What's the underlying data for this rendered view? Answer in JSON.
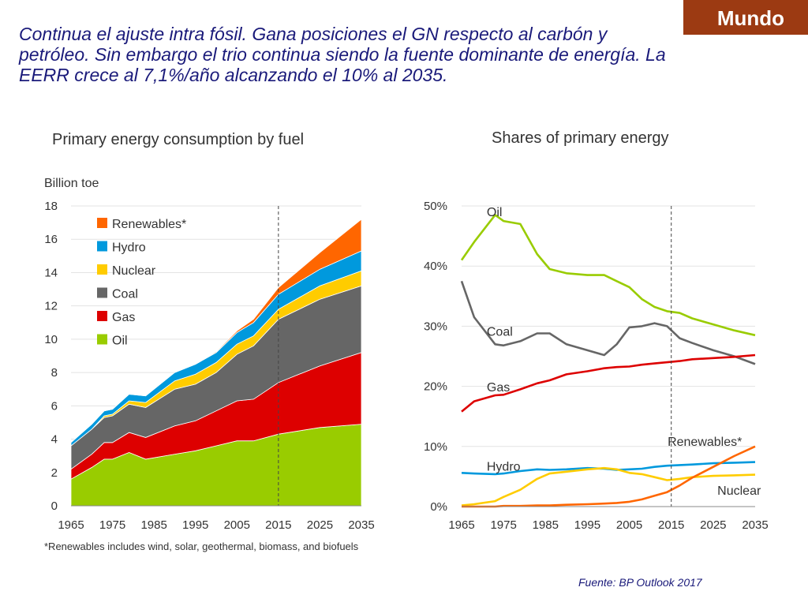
{
  "badge": "Mundo",
  "headline": "Continua el ajuste intra fósil. Gana posiciones el GN respecto al carbón y petróleo. Sin embargo el trio continua siendo la fuente dominante de energía. La EERR crece al 7,1%/año alcanzando el 10% al 2035.",
  "source": "Fuente: BP Outlook 2017",
  "colors": {
    "oil": "#99cc00",
    "gas": "#dd0000",
    "coal": "#666666",
    "nuclear": "#ffcc00",
    "hydro": "#0099dd",
    "renewables": "#ff6600"
  },
  "chart_data": [
    {
      "type": "area",
      "title": "Primary energy consumption by fuel",
      "ylabel": "Billion toe",
      "ylim": [
        0,
        18
      ],
      "yticks": [
        "0",
        "2",
        "4",
        "6",
        "8",
        "10",
        "12",
        "14",
        "16",
        "18"
      ],
      "xlim": [
        1965,
        2035
      ],
      "xticks": [
        "1965",
        "1975",
        "1985",
        "1995",
        "2005",
        "2015",
        "2025",
        "2035"
      ],
      "forecast_divider_year": 2015,
      "stacked": true,
      "legend_placement": "top-left",
      "footnote": "*Renewables includes wind, solar, geothermal, biomass, and biofuels",
      "x": [
        1965,
        1970,
        1973,
        1975,
        1979,
        1983,
        1990,
        1995,
        2000,
        2005,
        2009,
        2015,
        2025,
        2035
      ],
      "series": [
        {
          "name": "Oil",
          "key": "oil",
          "values": [
            1.6,
            2.3,
            2.8,
            2.8,
            3.2,
            2.8,
            3.1,
            3.3,
            3.6,
            3.9,
            3.9,
            4.3,
            4.7,
            4.9
          ]
        },
        {
          "name": "Gas",
          "key": "gas",
          "values": [
            0.6,
            0.8,
            1.0,
            1.0,
            1.2,
            1.3,
            1.7,
            1.8,
            2.1,
            2.4,
            2.5,
            3.1,
            3.7,
            4.3
          ]
        },
        {
          "name": "Coal",
          "key": "coal",
          "values": [
            1.4,
            1.5,
            1.5,
            1.6,
            1.7,
            1.8,
            2.2,
            2.2,
            2.3,
            2.8,
            3.2,
            3.8,
            4.0,
            4.0
          ]
        },
        {
          "name": "Nuclear",
          "key": "nuclear",
          "values": [
            0.0,
            0.0,
            0.1,
            0.1,
            0.2,
            0.3,
            0.5,
            0.6,
            0.6,
            0.6,
            0.6,
            0.6,
            0.8,
            0.9
          ]
        },
        {
          "name": "Hydro",
          "key": "hydro",
          "values": [
            0.2,
            0.3,
            0.3,
            0.3,
            0.4,
            0.4,
            0.5,
            0.6,
            0.6,
            0.7,
            0.8,
            0.9,
            1.0,
            1.2
          ]
        },
        {
          "name": "Renewables*",
          "key": "renewables",
          "values": [
            0.0,
            0.0,
            0.0,
            0.0,
            0.0,
            0.0,
            0.0,
            0.0,
            0.05,
            0.1,
            0.2,
            0.4,
            1.0,
            1.9
          ]
        }
      ]
    },
    {
      "type": "line",
      "title": "Shares of primary energy",
      "ylim": [
        0,
        50
      ],
      "yticks": [
        "0%",
        "10%",
        "20%",
        "30%",
        "40%",
        "50%"
      ],
      "xlim": [
        1965,
        2035
      ],
      "xticks": [
        "1965",
        "1975",
        "1985",
        "1995",
        "2005",
        "2015",
        "2025",
        "2035"
      ],
      "forecast_divider_year": 2015,
      "x": [
        1965,
        1968,
        1973,
        1975,
        1979,
        1983,
        1986,
        1990,
        1995,
        1999,
        2002,
        2005,
        2008,
        2011,
        2014,
        2017,
        2020,
        2025,
        2030,
        2035
      ],
      "series": [
        {
          "name": "Oil",
          "key": "oil",
          "label_year": 1971,
          "values": [
            41.0,
            44.0,
            48.5,
            47.5,
            47.0,
            42.0,
            39.5,
            38.8,
            38.5,
            38.5,
            37.5,
            36.5,
            34.5,
            33.2,
            32.5,
            32.2,
            31.3,
            30.3,
            29.3,
            28.5
          ]
        },
        {
          "name": "Coal",
          "key": "coal",
          "label_year": 1971,
          "values": [
            37.5,
            31.5,
            27.0,
            26.8,
            27.5,
            28.8,
            28.8,
            27.0,
            26.0,
            25.2,
            27.0,
            29.8,
            30.0,
            30.5,
            30.0,
            28.0,
            27.2,
            26.0,
            25.0,
            23.7
          ]
        },
        {
          "name": "Gas",
          "key": "gas",
          "label_year": 1971,
          "values": [
            15.8,
            17.5,
            18.5,
            18.6,
            19.5,
            20.5,
            21.0,
            22.0,
            22.5,
            23.0,
            23.2,
            23.3,
            23.6,
            23.8,
            24.0,
            24.2,
            24.5,
            24.7,
            24.9,
            25.2
          ]
        },
        {
          "name": "Hydro",
          "key": "hydro",
          "label_year": 1971,
          "values": [
            5.6,
            5.5,
            5.4,
            5.5,
            5.9,
            6.2,
            6.1,
            6.2,
            6.4,
            6.3,
            6.1,
            6.2,
            6.3,
            6.6,
            6.8,
            6.9,
            7.0,
            7.2,
            7.3,
            7.4
          ]
        },
        {
          "name": "Nuclear",
          "key": "nuclear",
          "label_year": 2026,
          "values": [
            0.2,
            0.4,
            0.9,
            1.6,
            2.8,
            4.6,
            5.5,
            5.8,
            6.2,
            6.4,
            6.2,
            5.6,
            5.4,
            4.9,
            4.4,
            4.6,
            4.9,
            5.1,
            5.2,
            5.3
          ]
        },
        {
          "name": "Renewables*",
          "key": "renewables",
          "label_year": 2023,
          "values": [
            0.0,
            0.0,
            0.0,
            0.1,
            0.1,
            0.2,
            0.2,
            0.3,
            0.4,
            0.5,
            0.6,
            0.8,
            1.2,
            1.8,
            2.4,
            3.5,
            4.8,
            6.6,
            8.4,
            10.0
          ]
        }
      ]
    }
  ]
}
